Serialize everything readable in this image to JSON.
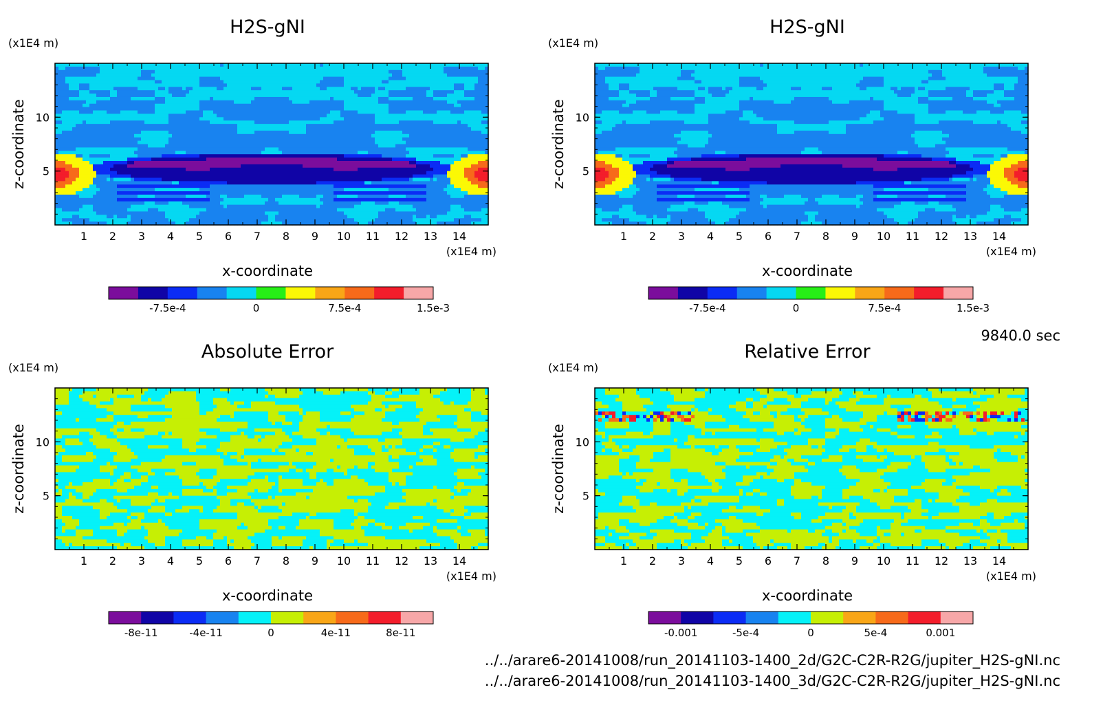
{
  "time_label": "9840.0 sec",
  "file_paths": [
    "../../arare6-20141008/run_20141103-1400_2d/G2C-C2R-R2G/jupiter_H2S-gNI.nc",
    "../../arare6-20141008/run_20141103-1400_3d/G2C-C2R-R2G/jupiter_H2S-gNI.nc"
  ],
  "chart_data": [
    {
      "type": "heatmap",
      "title": "H2S-gNI",
      "xlabel": "x-coordinate",
      "ylabel": "z-coordinate",
      "x_unit": "(x1E4 m)",
      "y_unit": "(x1E4 m)",
      "xlim": [
        0,
        15
      ],
      "ylim": [
        0,
        15
      ],
      "xticks": [
        "1",
        "2",
        "3",
        "4",
        "5",
        "6",
        "7",
        "8",
        "9",
        "10",
        "11",
        "12",
        "13",
        "14"
      ],
      "yticks": [
        "5",
        "10"
      ],
      "field": "cloud",
      "colorbar": {
        "colors": [
          "#7b0d9c",
          "#1004a6",
          "#0b2cf5",
          "#1883f0",
          "#05d8f2",
          "#27ef17",
          "#fbf805",
          "#f9a617",
          "#f76a1a",
          "#f31d2b",
          "#f7a7a8"
        ],
        "ticks": [
          {
            "value": -0.00075,
            "label": "-7.5e-4"
          },
          {
            "value": 0,
            "label": "0"
          },
          {
            "value": 0.00075,
            "label": "7.5e-4"
          },
          {
            "value": 0.0015,
            "label": "1.5e-3"
          }
        ],
        "range": [
          -0.00125,
          0.0015
        ]
      }
    },
    {
      "type": "heatmap",
      "title": "H2S-gNI",
      "xlabel": "x-coordinate",
      "ylabel": "z-coordinate",
      "x_unit": "(x1E4 m)",
      "y_unit": "(x1E4 m)",
      "xlim": [
        0,
        15
      ],
      "ylim": [
        0,
        15
      ],
      "xticks": [
        "1",
        "2",
        "3",
        "4",
        "5",
        "6",
        "7",
        "8",
        "9",
        "10",
        "11",
        "12",
        "13",
        "14"
      ],
      "yticks": [
        "5",
        "10"
      ],
      "field": "cloud",
      "colorbar": {
        "colors": [
          "#7b0d9c",
          "#1004a6",
          "#0b2cf5",
          "#1883f0",
          "#05d8f2",
          "#27ef17",
          "#fbf805",
          "#f9a617",
          "#f76a1a",
          "#f31d2b",
          "#f7a7a8"
        ],
        "ticks": [
          {
            "value": -0.00075,
            "label": "-7.5e-4"
          },
          {
            "value": 0,
            "label": "0"
          },
          {
            "value": 0.00075,
            "label": "7.5e-4"
          },
          {
            "value": 0.0015,
            "label": "1.5e-3"
          }
        ],
        "range": [
          -0.00125,
          0.0015
        ]
      }
    },
    {
      "type": "heatmap",
      "title": "Absolute Error",
      "xlabel": "x-coordinate",
      "ylabel": "z-coordinate",
      "x_unit": "(x1E4 m)",
      "y_unit": "(x1E4 m)",
      "xlim": [
        0,
        15
      ],
      "ylim": [
        0,
        15
      ],
      "xticks": [
        "1",
        "2",
        "3",
        "4",
        "5",
        "6",
        "7",
        "8",
        "9",
        "10",
        "11",
        "12",
        "13",
        "14"
      ],
      "yticks": [
        "5",
        "10"
      ],
      "field": "noise",
      "colorbar": {
        "colors": [
          "#7b0d9c",
          "#1004a6",
          "#0b2cf5",
          "#1883f0",
          "#05f2f8",
          "#c6ef04",
          "#f9a617",
          "#f76a1a",
          "#f31d2b",
          "#f7a7a8"
        ],
        "ticks": [
          {
            "value": -8e-11,
            "label": "-8e-11"
          },
          {
            "value": -4e-11,
            "label": "-4e-11"
          },
          {
            "value": 0,
            "label": "0"
          },
          {
            "value": 4e-11,
            "label": "4e-11"
          },
          {
            "value": 8e-11,
            "label": "8e-11"
          }
        ],
        "range": [
          -1e-10,
          1e-10
        ]
      }
    },
    {
      "type": "heatmap",
      "title": "Relative Error",
      "xlabel": "x-coordinate",
      "ylabel": "z-coordinate",
      "x_unit": "(x1E4 m)",
      "y_unit": "(x1E4 m)",
      "xlim": [
        0,
        15
      ],
      "ylim": [
        0,
        15
      ],
      "xticks": [
        "1",
        "2",
        "3",
        "4",
        "5",
        "6",
        "7",
        "8",
        "9",
        "10",
        "11",
        "12",
        "13",
        "14"
      ],
      "yticks": [
        "5",
        "10"
      ],
      "field": "noise-band",
      "colorbar": {
        "colors": [
          "#7b0d9c",
          "#1004a6",
          "#0b2cf5",
          "#1883f0",
          "#05f2f8",
          "#c6ef04",
          "#f9a617",
          "#f76a1a",
          "#f31d2b",
          "#f7a7a8"
        ],
        "ticks": [
          {
            "value": -0.001,
            "label": "-0.001"
          },
          {
            "value": -0.0005,
            "label": "-5e-4"
          },
          {
            "value": 0,
            "label": "0"
          },
          {
            "value": 0.0005,
            "label": "5e-4"
          },
          {
            "value": 0.001,
            "label": "0.001"
          }
        ],
        "range": [
          -0.00125,
          0.00125
        ]
      }
    }
  ]
}
